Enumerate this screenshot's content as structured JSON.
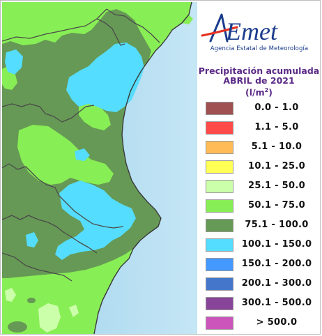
{
  "logo": {
    "name": "AEmet",
    "tagline": "Agencia Estatal de Meteorología"
  },
  "title": {
    "line1": "Precipitación acumulada",
    "line2": "ABRIL de 2021",
    "unit_prefix": "(l/m",
    "unit_sup": "2",
    "unit_suffix": ")"
  },
  "legend": [
    {
      "label": "0.0 - 1.0",
      "color": "#a05050"
    },
    {
      "label": "1.1 - 5.0",
      "color": "#ff4a4a"
    },
    {
      "label": "5.1 - 10.0",
      "color": "#ffbb55"
    },
    {
      "label": "10.1 - 25.0",
      "color": "#ffff55"
    },
    {
      "label": "25.1 - 50.0",
      "color": "#ccffaa"
    },
    {
      "label": "50.1 - 75.0",
      "color": "#88ee55"
    },
    {
      "label": "75.1 - 100.0",
      "color": "#669955"
    },
    {
      "label": "100.1 - 150.0",
      "color": "#55ddff"
    },
    {
      "label": "150.1 - 200.0",
      "color": "#4499ff"
    },
    {
      "label": "200.1 - 300.0",
      "color": "#4477cc"
    },
    {
      "label": "300.1 - 500.0",
      "color": "#884499"
    },
    {
      "label": "> 500.0",
      "color": "#cc55bb"
    }
  ],
  "map_colors": {
    "sea": "#a9d8ee",
    "light_green": "#88ee55",
    "dark_green": "#669955",
    "cyan": "#55ddff",
    "pale_green": "#ccffaa"
  }
}
